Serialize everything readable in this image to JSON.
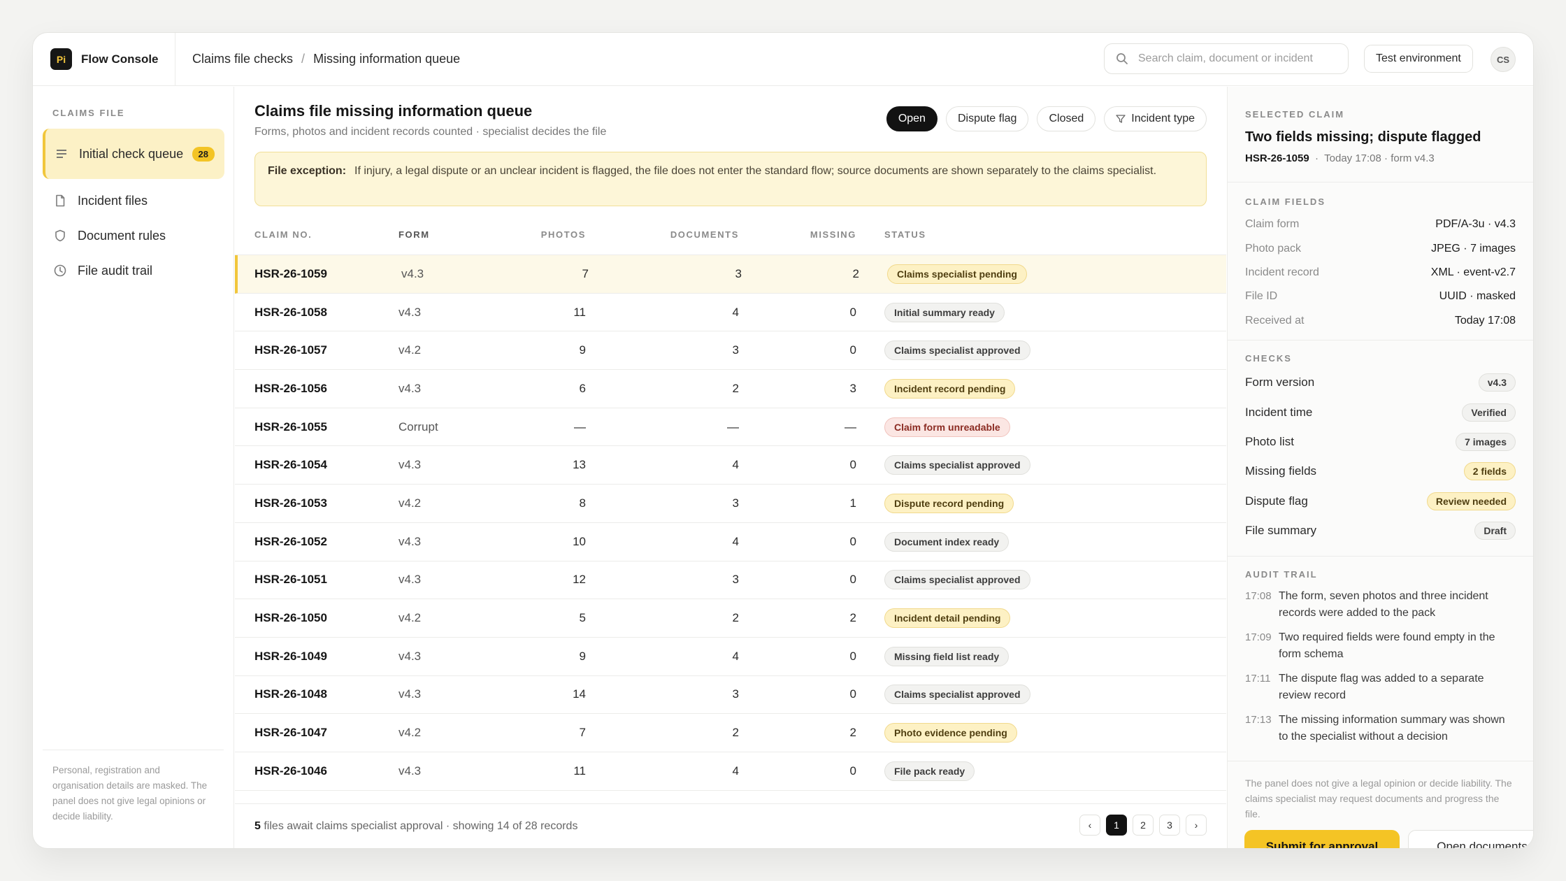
{
  "app": {
    "logo_text": "Pi",
    "name": "Flow Console"
  },
  "breadcrumb": [
    "Claims file checks",
    "Missing information queue"
  ],
  "search": {
    "placeholder": "Search claim, document or incident"
  },
  "header": {
    "env_label": "Test environment",
    "avatar_initials": "CS"
  },
  "sidebar": {
    "title": "CLAIMS FILE",
    "items": [
      {
        "label": "Initial check queue",
        "icon": "list-icon",
        "badge": "28",
        "active": true
      },
      {
        "label": "Incident files",
        "icon": "file-icon"
      },
      {
        "label": "Document rules",
        "icon": "shield-icon"
      },
      {
        "label": "File audit trail",
        "icon": "clock-icon"
      }
    ],
    "note": "Personal, registration and organisation details are masked. The panel does not give legal opinions or decide liability."
  },
  "main": {
    "title": "Claims file missing information queue",
    "subtitle": "Forms, photos and incident records counted · specialist decides the file",
    "filters": [
      "Open",
      "Dispute flag",
      "Closed",
      "Incident type"
    ],
    "notice": {
      "label": "File exception:",
      "text": "If injury, a legal dispute or an unclear incident is flagged, the file does not enter the standard flow; source documents are shown separately to the claims specialist."
    },
    "columns": [
      "CLAIM NO.",
      "FORM",
      "PHOTOS",
      "DOCUMENTS",
      "MISSING",
      "STATUS"
    ],
    "rows": [
      {
        "claim": "HSR-26-1059",
        "form": "v4.3",
        "photos": "7",
        "docs": "3",
        "missing": "2",
        "status": "Claims specialist pending",
        "tone": "warn"
      },
      {
        "claim": "HSR-26-1058",
        "form": "v4.3",
        "photos": "11",
        "docs": "4",
        "missing": "0",
        "status": "Initial summary ready",
        "tone": "neutral"
      },
      {
        "claim": "HSR-26-1057",
        "form": "v4.2",
        "photos": "9",
        "docs": "3",
        "missing": "0",
        "status": "Claims specialist approved",
        "tone": "neutral"
      },
      {
        "claim": "HSR-26-1056",
        "form": "v4.3",
        "photos": "6",
        "docs": "2",
        "missing": "3",
        "status": "Incident record pending",
        "tone": "warn"
      },
      {
        "claim": "HSR-26-1055",
        "form": "Corrupt",
        "photos": "—",
        "docs": "—",
        "missing": "—",
        "status": "Claim form unreadable",
        "tone": "error"
      },
      {
        "claim": "HSR-26-1054",
        "form": "v4.3",
        "photos": "13",
        "docs": "4",
        "missing": "0",
        "status": "Claims specialist approved",
        "tone": "neutral"
      },
      {
        "claim": "HSR-26-1053",
        "form": "v4.2",
        "photos": "8",
        "docs": "3",
        "missing": "1",
        "status": "Dispute record pending",
        "tone": "warn"
      },
      {
        "claim": "HSR-26-1052",
        "form": "v4.3",
        "photos": "10",
        "docs": "4",
        "missing": "0",
        "status": "Document index ready",
        "tone": "neutral"
      },
      {
        "claim": "HSR-26-1051",
        "form": "v4.3",
        "photos": "12",
        "docs": "3",
        "missing": "0",
        "status": "Claims specialist approved",
        "tone": "neutral"
      },
      {
        "claim": "HSR-26-1050",
        "form": "v4.2",
        "photos": "5",
        "docs": "2",
        "missing": "2",
        "status": "Incident detail pending",
        "tone": "warn"
      },
      {
        "claim": "HSR-26-1049",
        "form": "v4.3",
        "photos": "9",
        "docs": "4",
        "missing": "0",
        "status": "Missing field list ready",
        "tone": "neutral"
      },
      {
        "claim": "HSR-26-1048",
        "form": "v4.3",
        "photos": "14",
        "docs": "3",
        "missing": "0",
        "status": "Claims specialist approved",
        "tone": "neutral"
      },
      {
        "claim": "HSR-26-1047",
        "form": "v4.2",
        "photos": "7",
        "docs": "2",
        "missing": "2",
        "status": "Photo evidence pending",
        "tone": "warn"
      },
      {
        "claim": "HSR-26-1046",
        "form": "v4.3",
        "photos": "11",
        "docs": "4",
        "missing": "0",
        "status": "File pack ready",
        "tone": "neutral"
      }
    ],
    "footer": {
      "count": "5",
      "text": "files await claims specialist approval · showing 14 of 28 records"
    },
    "pager": {
      "prev": "‹",
      "pages": [
        "1",
        "2",
        "3"
      ],
      "next": "›"
    }
  },
  "panel": {
    "selected": {
      "title": "SELECTED CLAIM",
      "heading": "Two fields missing; dispute flagged",
      "claim": "HSR-26-1059",
      "meta": "Today 17:08 · form v4.3"
    },
    "fields": {
      "title": "CLAIM FIELDS",
      "items": [
        {
          "k": "Claim form",
          "v": "PDF/A-3u · v4.3"
        },
        {
          "k": "Photo pack",
          "v": "JPEG · 7 images"
        },
        {
          "k": "Incident record",
          "v": "XML · event-v2.7"
        },
        {
          "k": "File ID",
          "v": "UUID · masked"
        },
        {
          "k": "Received at",
          "v": "Today 17:08"
        }
      ]
    },
    "checks": {
      "title": "CHECKS",
      "items": [
        {
          "k": "Form version",
          "v": "v4.3",
          "tone": "neutral"
        },
        {
          "k": "Incident time",
          "v": "Verified",
          "tone": "neutral"
        },
        {
          "k": "Photo list",
          "v": "7 images",
          "tone": "neutral"
        },
        {
          "k": "Missing fields",
          "v": "2 fields",
          "tone": "warn"
        },
        {
          "k": "Dispute flag",
          "v": "Review needed",
          "tone": "warn"
        },
        {
          "k": "File summary",
          "v": "Draft",
          "tone": "neutral"
        }
      ]
    },
    "audit": {
      "title": "AUDIT TRAIL",
      "events": [
        {
          "t": "17:08",
          "d": "The form, seven photos and three incident records were added to the pack"
        },
        {
          "t": "17:09",
          "d": "Two required fields were found empty in the form schema"
        },
        {
          "t": "17:11",
          "d": "The dispute flag was added to a separate review record"
        },
        {
          "t": "17:13",
          "d": "The missing information summary was shown to the specialist without a decision"
        }
      ]
    },
    "note": "The panel does not give a legal opinion or decide liability. The claims specialist may request documents and progress the file.",
    "actions": {
      "primary": "Submit for approval",
      "secondary": "Open documents"
    }
  },
  "colors": {
    "accent": "#f4c425",
    "selected_row": "#fdf9e8",
    "notice_bg": "#fdf6d8",
    "error_bg": "#fbe6e3"
  }
}
